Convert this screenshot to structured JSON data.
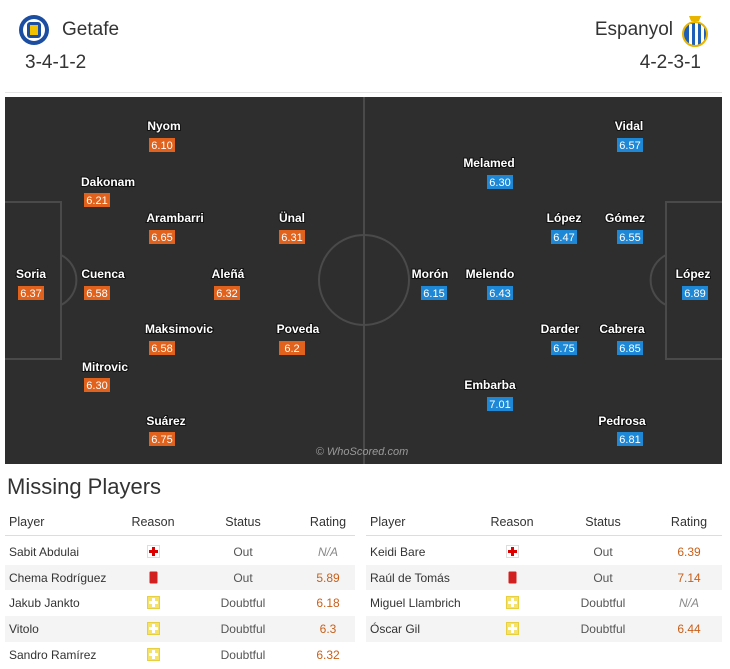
{
  "header": {
    "home": {
      "name": "Getafe",
      "formation": "3-4-1-2"
    },
    "away": {
      "name": "Espanyol",
      "formation": "4-2-3-1"
    }
  },
  "pitch": {
    "home_players": [
      {
        "name": "Nyom",
        "rating": "6.10"
      },
      {
        "name": "Dakonam",
        "rating": "6.21"
      },
      {
        "name": "Arambarri",
        "rating": "6.65"
      },
      {
        "name": "Ünal",
        "rating": "6.31"
      },
      {
        "name": "Soria",
        "rating": "6.37"
      },
      {
        "name": "Cuenca",
        "rating": "6.58"
      },
      {
        "name": "Aleñá",
        "rating": "6.32"
      },
      {
        "name": "Maksimovic",
        "rating": "6.58"
      },
      {
        "name": "Poveda",
        "rating": "6.2"
      },
      {
        "name": "Mitrovic",
        "rating": "6.30"
      },
      {
        "name": "Suárez",
        "rating": "6.75"
      }
    ],
    "away_players": [
      {
        "name": "Vidal",
        "rating": "6.57"
      },
      {
        "name": "Melamed",
        "rating": "6.30"
      },
      {
        "name": "López",
        "rating": "6.47"
      },
      {
        "name": "Gómez",
        "rating": "6.55"
      },
      {
        "name": "Morón",
        "rating": "6.15"
      },
      {
        "name": "Melendo",
        "rating": "6.43"
      },
      {
        "name": "López",
        "rating": "6.89"
      },
      {
        "name": "Darder",
        "rating": "6.75"
      },
      {
        "name": "Cabrera",
        "rating": "6.85"
      },
      {
        "name": "Embarba",
        "rating": "7.01"
      },
      {
        "name": "Pedrosa",
        "rating": "6.81"
      }
    ],
    "watermark": "© WhoScored.com"
  },
  "missing": {
    "title": "Missing Players",
    "columns": [
      "Player",
      "Reason",
      "Status",
      "Rating"
    ],
    "home": [
      {
        "player": "Sabit Abdulai",
        "status": "Out",
        "rating": "N/A"
      },
      {
        "player": "Chema Rodríguez",
        "status": "Out",
        "rating": "5.89"
      },
      {
        "player": "Jakub Jankto",
        "status": "Doubtful",
        "rating": "6.18"
      },
      {
        "player": "Vitolo",
        "status": "Doubtful",
        "rating": "6.3"
      },
      {
        "player": "Sandro Ramírez",
        "status": "Doubtful",
        "rating": "6.32"
      }
    ],
    "away": [
      {
        "player": "Keidi Bare",
        "status": "Out",
        "rating": "6.39"
      },
      {
        "player": "Raúl de Tomás",
        "status": "Out",
        "rating": "7.14"
      },
      {
        "player": "Miguel Llambrich",
        "status": "Doubtful",
        "rating": "N/A"
      },
      {
        "player": "Óscar Gil",
        "status": "Doubtful",
        "rating": "6.44"
      }
    ]
  }
}
